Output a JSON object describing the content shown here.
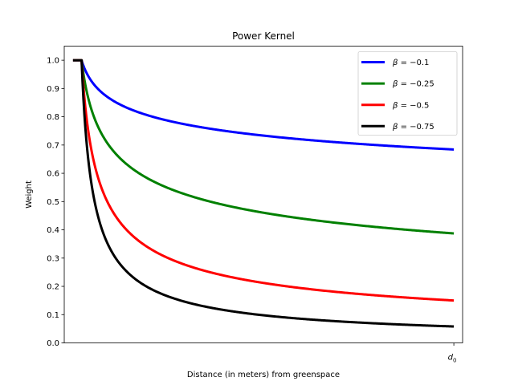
{
  "chart_data": {
    "type": "line",
    "title": "Power Kernel",
    "xlabel": "Distance (in meters) from greenspace",
    "ylabel": "Weight",
    "ylim": [
      0,
      1.05
    ],
    "yticks": [
      "0.0",
      "0.1",
      "0.2",
      "0.3",
      "0.4",
      "0.5",
      "0.6",
      "0.7",
      "0.8",
      "0.9",
      "1.0"
    ],
    "xticks": [
      {
        "label_base": "d",
        "label_sub": "0",
        "value": 1
      }
    ],
    "xlim": [
      -0.023,
      1.023
    ],
    "plateau_end": 0.0225,
    "grid": false,
    "legend_placement": "top-right",
    "series": [
      {
        "name": "β = −0.1",
        "legend_greek": "β",
        "legend_eq": " = −0.1",
        "beta": -0.1,
        "color": "#0000ff",
        "end_value": 0.675
      },
      {
        "name": "β = −0.25",
        "legend_greek": "β",
        "legend_eq": " = −0.25",
        "beta": -0.25,
        "color": "#008000",
        "end_value": 0.375
      },
      {
        "name": "β = −0.5",
        "legend_greek": "β",
        "legend_eq": " = −0.5",
        "beta": -0.5,
        "color": "#ff0000",
        "end_value": 0.141
      },
      {
        "name": "β = −0.75",
        "legend_greek": "β",
        "legend_eq": " = −0.75",
        "beta": -0.75,
        "color": "#000000",
        "end_value": 0.053
      }
    ]
  }
}
